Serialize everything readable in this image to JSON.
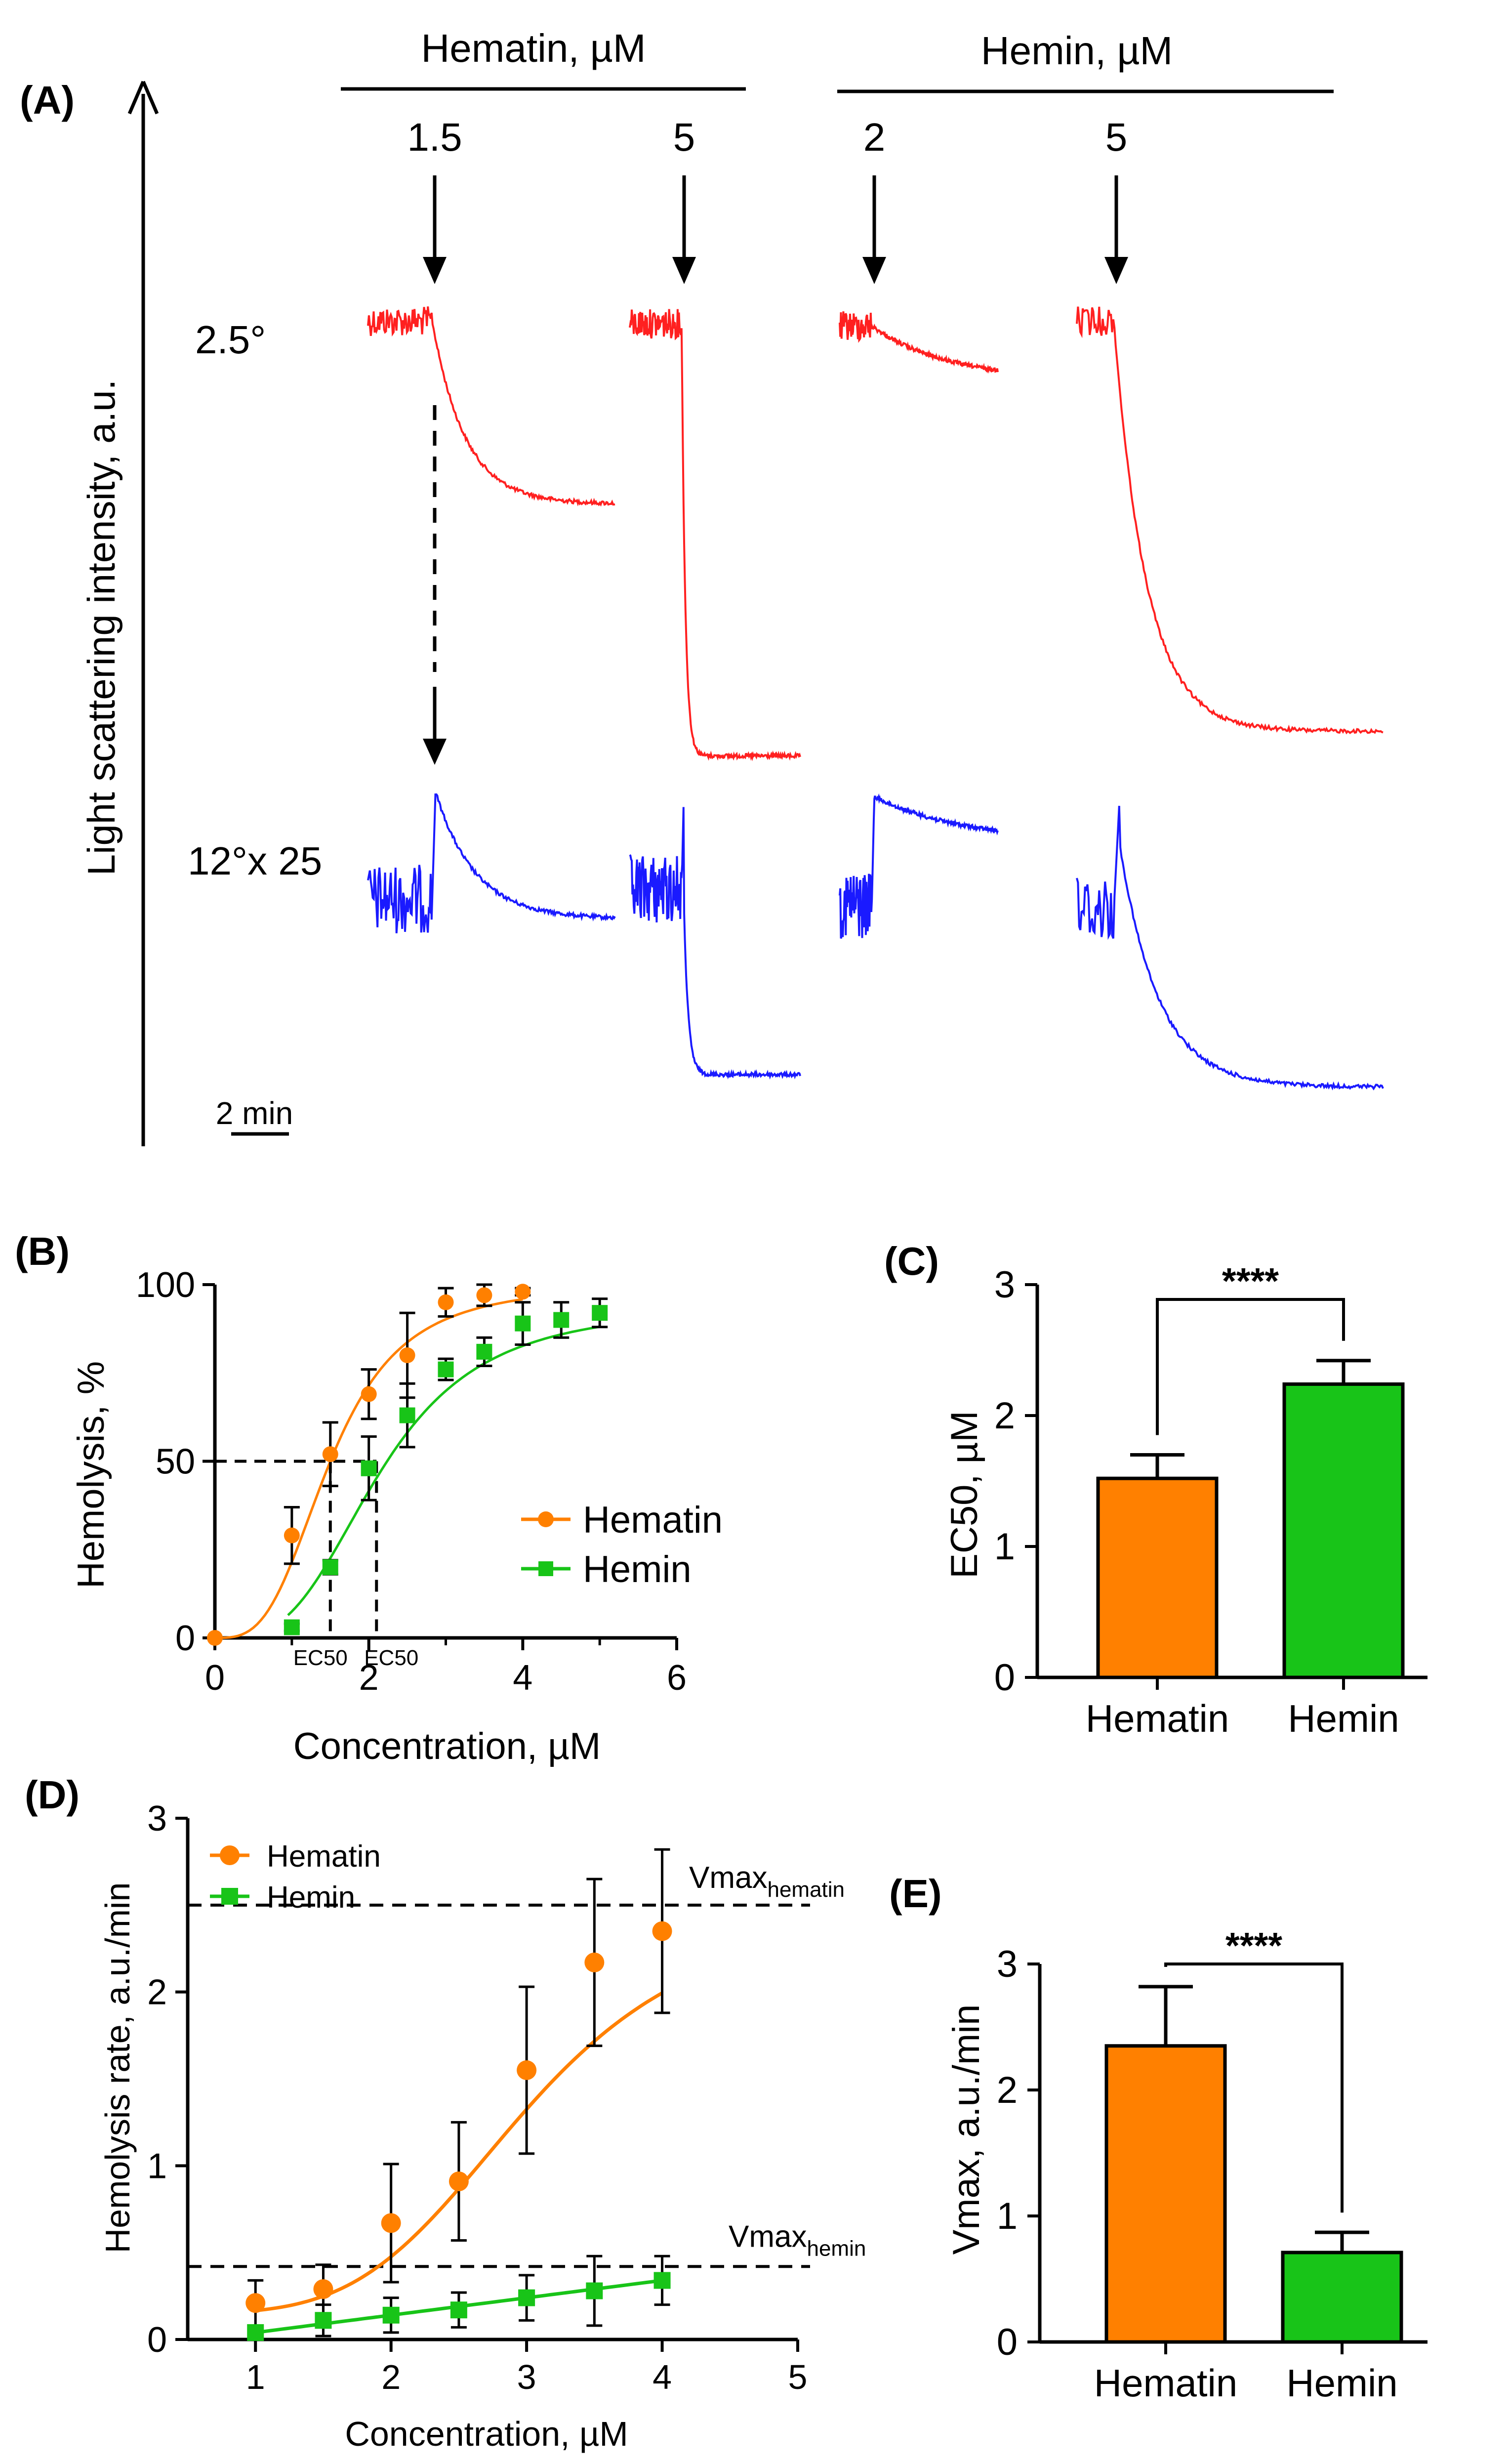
{
  "colors": {
    "hematin": "#ff8000",
    "hemin": "#18c418",
    "red_trace": "#ff2020",
    "blue_trace": "#1a1aff",
    "axis": "#000000"
  },
  "panel_a": {
    "label": "(A)",
    "ylabel": "Light scattering intensity, a.u.",
    "group_hematin": "Hematin, µM",
    "group_hemin": "Hemin, µM",
    "angle_low": "2.5°",
    "angle_high": "12°x 25",
    "scale_bar": "2 min",
    "columns": [
      {
        "conc": "1.5",
        "agent": "hematin",
        "drop": 0.55,
        "tau": 0.18,
        "peak": 0.25
      },
      {
        "conc": "5",
        "agent": "hematin",
        "drop": 1.0,
        "tau": 0.03,
        "peak": 0.6
      },
      {
        "conc": "2",
        "agent": "hemin",
        "drop": 0.12,
        "tau": 0.6,
        "peak": 0.3
      },
      {
        "conc": "5",
        "agent": "hemin",
        "drop": 0.95,
        "tau": 0.12,
        "peak": 0.45
      }
    ]
  },
  "chart_data": [
    {
      "panel": "(B)",
      "type": "scatter",
      "xlabel": "Concentration, µM",
      "ylabel": "Hemolysis, %",
      "xlim": [
        0,
        6
      ],
      "ylim": [
        0,
        100
      ],
      "xticks": [
        "0",
        "2",
        "4",
        "6"
      ],
      "yticks": [
        "0",
        "50",
        "100"
      ],
      "annotations": [
        "EC50",
        "EC50"
      ],
      "series": [
        {
          "name": "Hematin",
          "color": "#ff8000",
          "marker": "circle",
          "x": [
            0,
            1,
            1.5,
            2,
            2.5,
            3,
            3.5,
            4
          ],
          "y": [
            0,
            29,
            52,
            69,
            80,
            95,
            97,
            98
          ],
          "err": [
            0,
            8,
            9,
            7,
            12,
            4,
            3,
            1
          ],
          "ec50": 1.5
        },
        {
          "name": "Hemin",
          "color": "#18c418",
          "marker": "square",
          "x": [
            1,
            1.5,
            2,
            2.5,
            3,
            3.5,
            4,
            4.5,
            5
          ],
          "y": [
            3,
            20,
            48,
            63,
            76,
            81,
            89,
            90,
            92
          ],
          "err": [
            1,
            2,
            9,
            9,
            3,
            4,
            6,
            5,
            4
          ],
          "ec50": 2.1
        }
      ]
    },
    {
      "panel": "(C)",
      "type": "bar",
      "ylabel": "EC50, µM",
      "ylim": [
        0,
        3
      ],
      "yticks": [
        "0",
        "1",
        "2",
        "3"
      ],
      "categories": [
        "Hematin",
        "Hemin"
      ],
      "values": [
        1.52,
        2.24
      ],
      "err": [
        0.18,
        0.18
      ],
      "colors": [
        "#ff8000",
        "#18c418"
      ],
      "significance": "****"
    },
    {
      "panel": "(D)",
      "type": "scatter",
      "xlabel": "Concentration, µM",
      "ylabel": "Hemolysis rate, a.u./min",
      "xlim": [
        0.5,
        5
      ],
      "ylim": [
        0,
        3
      ],
      "xticks": [
        "1",
        "2",
        "3",
        "4",
        "5"
      ],
      "yticks": [
        "0",
        "1",
        "2",
        "3"
      ],
      "hlines": [
        {
          "label": "Vmax",
          "sub": "hematin",
          "y": 2.5
        },
        {
          "label": "Vmax",
          "sub": "hemin",
          "y": 0.42
        }
      ],
      "series": [
        {
          "name": "Hematin",
          "color": "#ff8000",
          "marker": "circle",
          "x": [
            1,
            1.5,
            2,
            2.5,
            3,
            3.5,
            4
          ],
          "y": [
            0.21,
            0.29,
            0.67,
            0.91,
            1.55,
            2.17,
            2.35
          ],
          "err": [
            0.13,
            0.14,
            0.34,
            0.34,
            0.48,
            0.48,
            0.47
          ]
        },
        {
          "name": "Hemin",
          "color": "#18c418",
          "marker": "square",
          "x": [
            1,
            1.5,
            2,
            2.5,
            3,
            3.5,
            4
          ],
          "y": [
            0.04,
            0.11,
            0.14,
            0.17,
            0.24,
            0.28,
            0.34
          ],
          "err": [
            0.04,
            0.09,
            0.1,
            0.1,
            0.13,
            0.2,
            0.14
          ]
        }
      ]
    },
    {
      "panel": "(E)",
      "type": "bar",
      "ylabel": "Vmax, a.u./min",
      "ylim": [
        0,
        3
      ],
      "yticks": [
        "0",
        "1",
        "2",
        "3"
      ],
      "categories": [
        "Hematin",
        "Hemin"
      ],
      "values": [
        2.35,
        0.71
      ],
      "err": [
        0.47,
        0.16
      ],
      "colors": [
        "#ff8000",
        "#18c418"
      ],
      "significance": "****"
    }
  ]
}
